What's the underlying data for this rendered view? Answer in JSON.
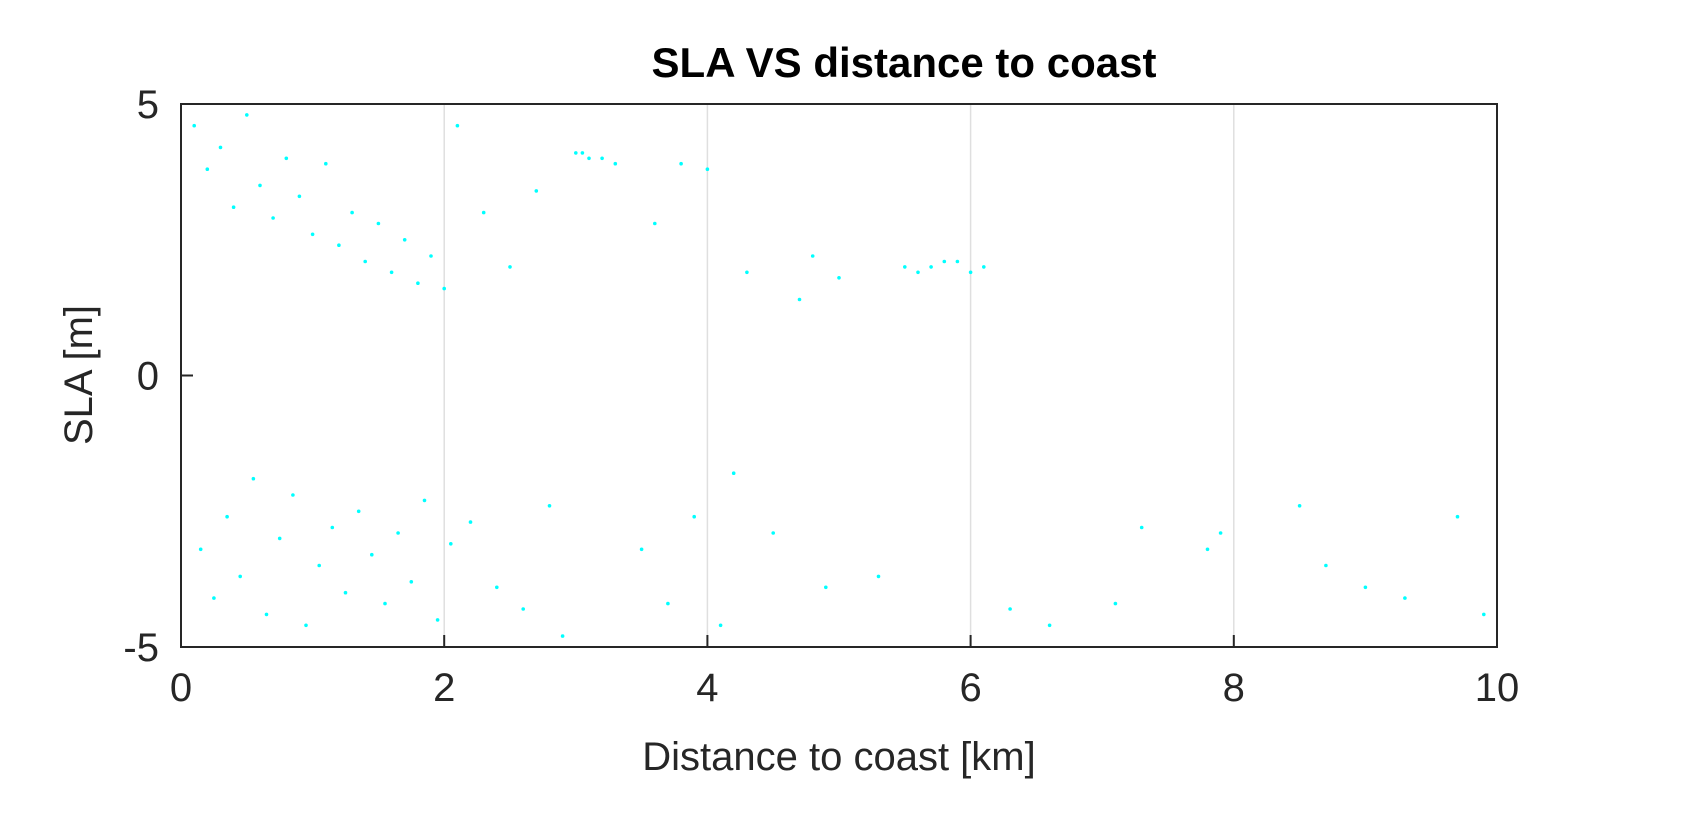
{
  "chart_data": {
    "type": "scatter",
    "title": "SLA VS distance to coast",
    "xlabel": "Distance to coast [km]",
    "ylabel": "SLA [m]",
    "xlim": [
      0,
      10
    ],
    "ylim": [
      -5,
      5
    ],
    "xticks": [
      0,
      2,
      4,
      6,
      8,
      10
    ],
    "xtick_labels": [
      "0",
      "2",
      "4",
      "6",
      "8",
      "10"
    ],
    "yticks": [
      -5,
      0,
      5
    ],
    "ytick_labels": [
      "-5",
      "0",
      "5"
    ],
    "grid": "x-only",
    "marker_color": "#00FFFF",
    "series": [
      {
        "points": [
          [
            0.1,
            4.6
          ],
          [
            0.15,
            -3.2
          ],
          [
            0.2,
            3.8
          ],
          [
            0.25,
            -4.1
          ],
          [
            0.3,
            4.2
          ],
          [
            0.35,
            -2.6
          ],
          [
            0.4,
            3.1
          ],
          [
            0.45,
            -3.7
          ],
          [
            0.5,
            4.8
          ],
          [
            0.55,
            -1.9
          ],
          [
            0.6,
            3.5
          ],
          [
            0.65,
            -4.4
          ],
          [
            0.7,
            2.9
          ],
          [
            0.75,
            -3.0
          ],
          [
            0.8,
            4.0
          ],
          [
            0.85,
            -2.2
          ],
          [
            0.9,
            3.3
          ],
          [
            0.95,
            -4.6
          ],
          [
            1.0,
            2.6
          ],
          [
            1.05,
            -3.5
          ],
          [
            1.1,
            3.9
          ],
          [
            1.15,
            -2.8
          ],
          [
            1.2,
            2.4
          ],
          [
            1.25,
            -4.0
          ],
          [
            1.3,
            3.0
          ],
          [
            1.35,
            -2.5
          ],
          [
            1.4,
            2.1
          ],
          [
            1.45,
            -3.3
          ],
          [
            1.5,
            2.8
          ],
          [
            1.55,
            -4.2
          ],
          [
            1.6,
            1.9
          ],
          [
            1.65,
            -2.9
          ],
          [
            1.7,
            2.5
          ],
          [
            1.75,
            -3.8
          ],
          [
            1.8,
            1.7
          ],
          [
            1.85,
            -2.3
          ],
          [
            1.9,
            2.2
          ],
          [
            1.95,
            -4.5
          ],
          [
            2.0,
            1.6
          ],
          [
            2.05,
            -3.1
          ],
          [
            2.1,
            4.6
          ],
          [
            2.2,
            -2.7
          ],
          [
            2.3,
            3.0
          ],
          [
            2.4,
            -3.9
          ],
          [
            2.5,
            2.0
          ],
          [
            2.6,
            -4.3
          ],
          [
            2.7,
            3.4
          ],
          [
            2.8,
            -2.4
          ],
          [
            2.9,
            -4.8
          ],
          [
            3.0,
            4.1
          ],
          [
            3.05,
            4.1
          ],
          [
            3.1,
            4.0
          ],
          [
            3.2,
            4.0
          ],
          [
            3.3,
            3.9
          ],
          [
            3.5,
            -3.2
          ],
          [
            3.6,
            2.8
          ],
          [
            3.7,
            -4.2
          ],
          [
            3.8,
            3.9
          ],
          [
            3.9,
            -2.6
          ],
          [
            4.0,
            3.8
          ],
          [
            4.1,
            -4.6
          ],
          [
            4.2,
            -1.8
          ],
          [
            4.3,
            1.9
          ],
          [
            4.5,
            -2.9
          ],
          [
            4.7,
            1.4
          ],
          [
            4.8,
            2.2
          ],
          [
            4.9,
            -3.9
          ],
          [
            5.0,
            1.8
          ],
          [
            5.3,
            -3.7
          ],
          [
            5.5,
            2.0
          ],
          [
            5.6,
            1.9
          ],
          [
            5.7,
            2.0
          ],
          [
            5.8,
            2.1
          ],
          [
            5.9,
            2.1
          ],
          [
            6.0,
            1.9
          ],
          [
            6.1,
            2.0
          ],
          [
            6.3,
            -4.3
          ],
          [
            6.6,
            -4.6
          ],
          [
            7.1,
            -4.2
          ],
          [
            7.3,
            -2.8
          ],
          [
            7.8,
            -3.2
          ],
          [
            7.9,
            -2.9
          ],
          [
            8.5,
            -2.4
          ],
          [
            8.7,
            -3.5
          ],
          [
            9.0,
            -3.9
          ],
          [
            9.3,
            -4.1
          ],
          [
            9.7,
            -2.6
          ],
          [
            9.9,
            -4.4
          ]
        ]
      }
    ]
  }
}
